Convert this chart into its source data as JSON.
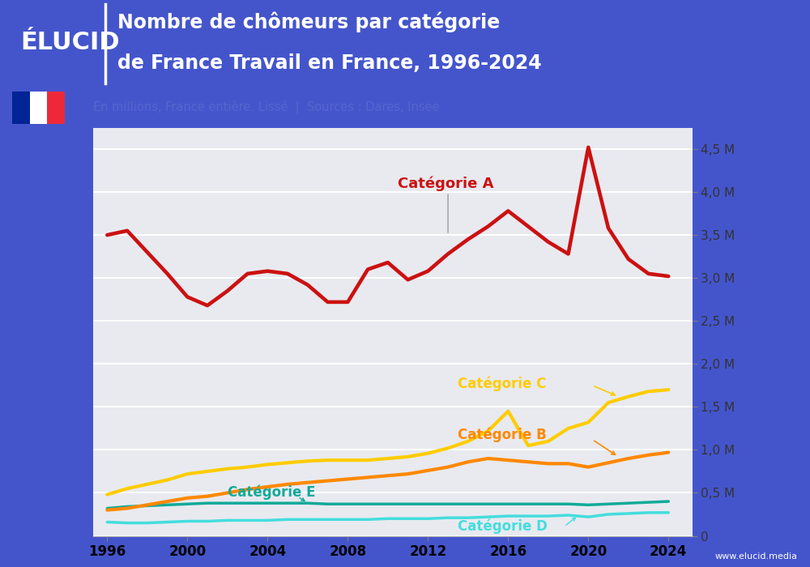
{
  "title_line1": "Nombre de chômeurs par catégorie",
  "title_line2": "de France Travail en France, 1996-2024",
  "subtitle": "En millions, France entière. Lissé  |  Sources : Dares, Insee",
  "bg_color": "#4455cc",
  "header_dark_color": "#3a4bbf",
  "subheader_color": "#e8eaf6",
  "plot_bg_color": "#e8eaf0",
  "years": [
    1996,
    1997,
    1998,
    1999,
    2000,
    2001,
    2002,
    2003,
    2004,
    2005,
    2006,
    2007,
    2008,
    2009,
    2010,
    2011,
    2012,
    2013,
    2014,
    2015,
    2016,
    2017,
    2018,
    2019,
    2020,
    2021,
    2022,
    2023,
    2024
  ],
  "cat_A": [
    3.5,
    3.55,
    3.3,
    3.05,
    2.78,
    2.68,
    2.85,
    3.05,
    3.08,
    3.05,
    2.92,
    2.72,
    2.72,
    3.1,
    3.18,
    2.98,
    3.08,
    3.28,
    3.45,
    3.6,
    3.78,
    3.6,
    3.42,
    3.28,
    4.52,
    3.58,
    3.22,
    3.05,
    3.02
  ],
  "cat_B": [
    0.3,
    0.32,
    0.36,
    0.4,
    0.44,
    0.46,
    0.5,
    0.54,
    0.57,
    0.6,
    0.62,
    0.64,
    0.66,
    0.68,
    0.7,
    0.72,
    0.76,
    0.8,
    0.86,
    0.9,
    0.88,
    0.86,
    0.84,
    0.84,
    0.8,
    0.85,
    0.9,
    0.94,
    0.97
  ],
  "cat_C": [
    0.48,
    0.55,
    0.6,
    0.65,
    0.72,
    0.75,
    0.78,
    0.8,
    0.83,
    0.85,
    0.87,
    0.88,
    0.88,
    0.88,
    0.9,
    0.92,
    0.96,
    1.02,
    1.1,
    1.22,
    1.45,
    1.05,
    1.1,
    1.25,
    1.32,
    1.55,
    1.62,
    1.68,
    1.7
  ],
  "cat_D": [
    0.16,
    0.15,
    0.15,
    0.16,
    0.17,
    0.17,
    0.18,
    0.18,
    0.18,
    0.19,
    0.19,
    0.19,
    0.19,
    0.19,
    0.2,
    0.2,
    0.2,
    0.21,
    0.21,
    0.22,
    0.23,
    0.23,
    0.23,
    0.24,
    0.22,
    0.25,
    0.26,
    0.27,
    0.27
  ],
  "cat_E": [
    0.32,
    0.34,
    0.35,
    0.36,
    0.37,
    0.38,
    0.38,
    0.38,
    0.38,
    0.38,
    0.38,
    0.37,
    0.37,
    0.37,
    0.37,
    0.37,
    0.37,
    0.37,
    0.37,
    0.37,
    0.37,
    0.37,
    0.37,
    0.37,
    0.36,
    0.37,
    0.38,
    0.39,
    0.4
  ],
  "color_A": "#cc1111",
  "color_B": "#ff8800",
  "color_C": "#ffcc00",
  "color_D": "#44dddd",
  "color_E": "#11aa99",
  "ylim": [
    0,
    4.75
  ],
  "yticks": [
    0,
    0.5,
    1.0,
    1.5,
    2.0,
    2.5,
    3.0,
    3.5,
    4.0,
    4.5
  ],
  "ytick_labels": [
    "0",
    "0,5 M",
    "1,0 M",
    "1,5 M",
    "2,0 M",
    "2,5 M",
    "3,0 M",
    "3,5 M",
    "4,0 M",
    "4,5 M"
  ],
  "xticks": [
    1996,
    2000,
    2004,
    2008,
    2012,
    2016,
    2020,
    2024
  ],
  "label_A": "Catégorie A",
  "label_B": "Catégorie B",
  "label_C": "Catégorie C",
  "label_D": "Catégorie D",
  "label_E": "Catégorie E",
  "website": "www.elucid.media"
}
